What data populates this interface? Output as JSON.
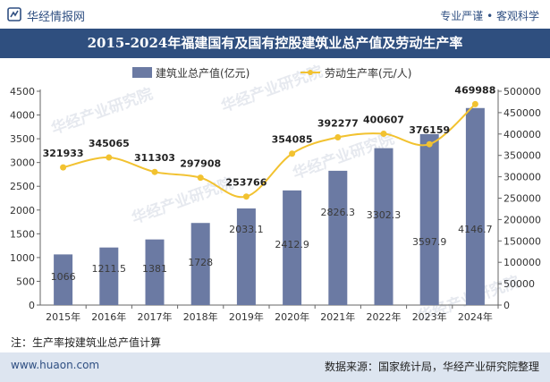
{
  "header": {
    "site_name": "华经情报网",
    "slogan": "专业严谨 • 客观科学"
  },
  "footer": {
    "url": "www.huaon.com",
    "source": "数据来源：国家统计局，华经产业研究院整理"
  },
  "note": "注：生产率按建筑业总产值计算",
  "watermark": "华经产业研究院",
  "watermark_url": "www.huaon.com",
  "colors": {
    "bar": "#6b7aa3",
    "line": "#f2c230",
    "title_bg": "#2f4f7f",
    "footer_bg": "#dde5f0"
  },
  "chart_data": {
    "type": "bar+line",
    "title": "2015-2024年福建国有及国有控股建筑业总产值及劳动生产率",
    "categories": [
      "2015年",
      "2016年",
      "2017年",
      "2018年",
      "2019年",
      "2020年",
      "2021年",
      "2022年",
      "2023年",
      "2024年"
    ],
    "series": [
      {
        "name": "建筑业总产值(亿元)",
        "type": "bar",
        "axis": "left",
        "values": [
          1066,
          1211.5,
          1381,
          1728,
          2033.1,
          2412.9,
          2826.3,
          3302.3,
          3597.9,
          4146.7
        ],
        "labels": [
          "1066",
          "1211.5",
          "1381",
          "1728",
          "2033.1",
          "2412.9",
          "2826.3",
          "3302.3",
          "3597.9",
          "4146.7"
        ]
      },
      {
        "name": "劳动生产率(元/人)",
        "type": "line",
        "axis": "right",
        "values": [
          321933,
          345065,
          311303,
          297908,
          253766,
          354085,
          392277,
          400607,
          376159,
          469988
        ],
        "labels": [
          "321933",
          "345065",
          "311303",
          "297908",
          "253766",
          "354085",
          "392277",
          "400607",
          "376159",
          "469988"
        ]
      }
    ],
    "y_left": {
      "min": 0,
      "max": 4500,
      "ticks": [
        "0",
        "500",
        "1000",
        "1500",
        "2000",
        "2500",
        "3000",
        "3500",
        "4000",
        "4500"
      ]
    },
    "y_right": {
      "min": 0,
      "max": 500000,
      "ticks": [
        "0",
        "50000",
        "100000",
        "150000",
        "200000",
        "250000",
        "300000",
        "350000",
        "400000",
        "450000",
        "500000"
      ]
    },
    "legend_position": "top"
  }
}
